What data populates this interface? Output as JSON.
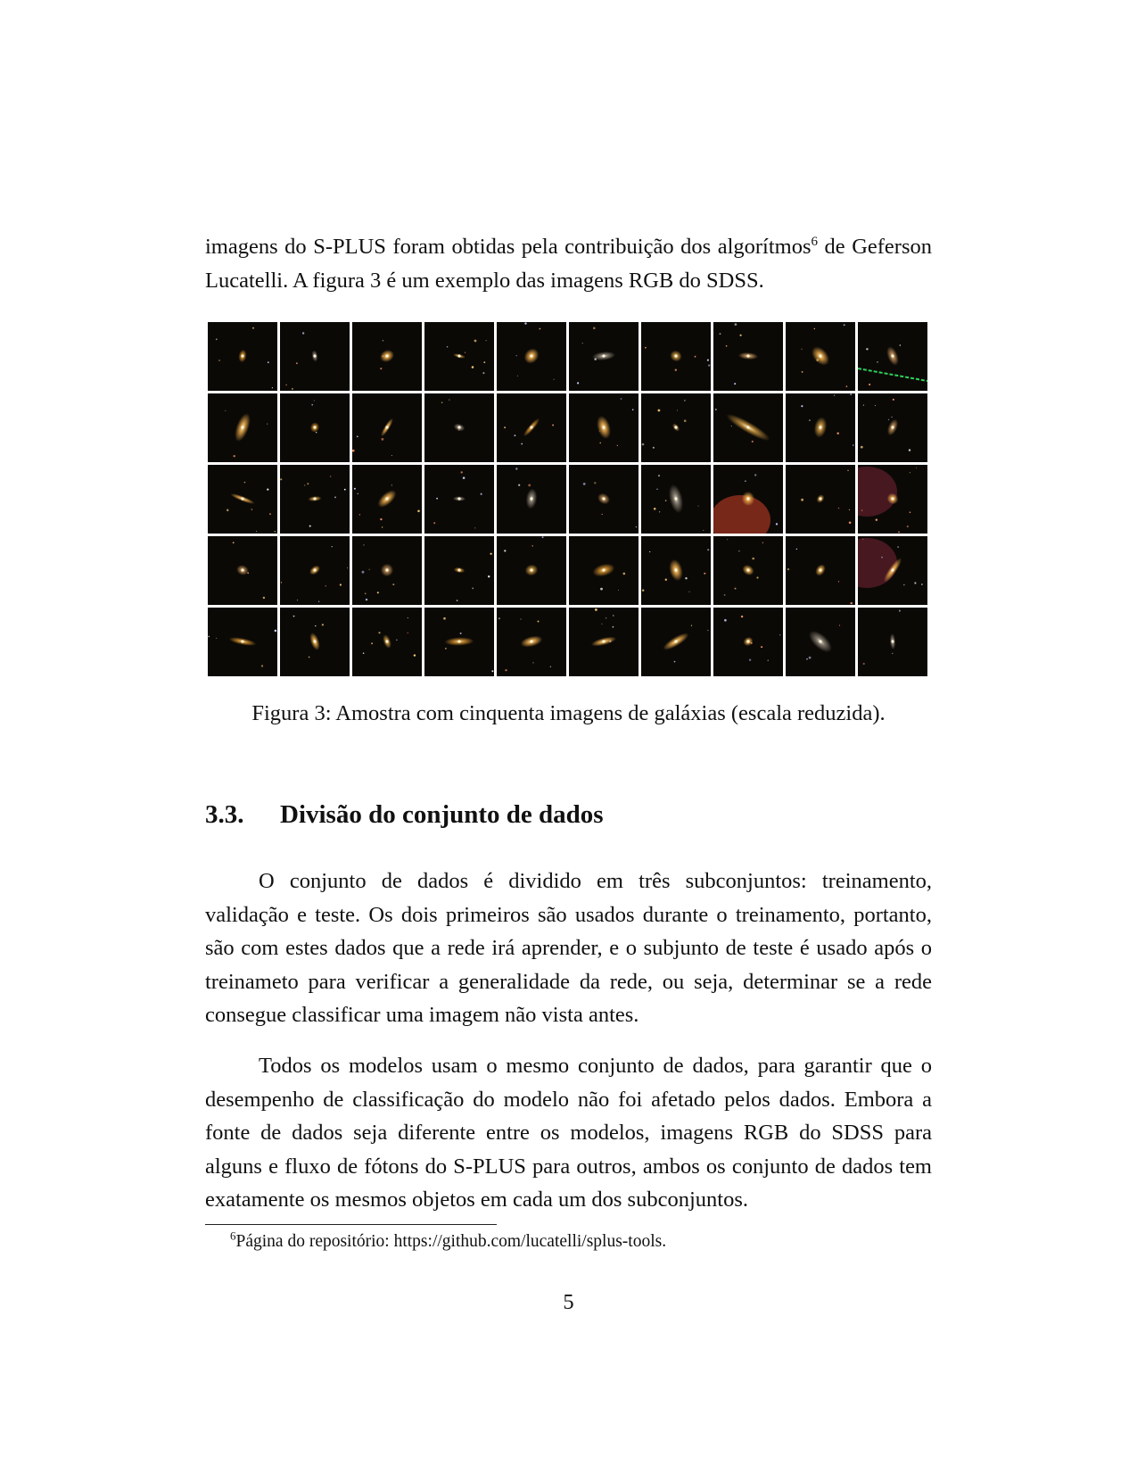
{
  "intro": {
    "before_sup": "imagens do S-PLUS foram obtidas pela contribuição dos algorítmos",
    "sup": "6",
    "after_sup": " de Geferson Lucatelli. A figura 3 é um exemplo das imagens RGB do SDSS."
  },
  "figure": {
    "rows": 5,
    "cols": 10,
    "caption": "Figura 3: Amostra com cinquenta imagens de galáxias (escala reduzida)."
  },
  "section": {
    "number": "3.3.",
    "title": "Divisão do conjunto de dados"
  },
  "paragraphs": [
    "O conjunto de dados é dividido em três subconjuntos: treinamento, validação e teste. Os dois primeiros são usados durante o treinamento, portanto, são com estes dados que a rede irá aprender, e o subjunto de teste é usado após o treinameto para verificar a generalidade da rede, ou seja, determinar se a rede consegue classificar uma imagem não vista antes.",
    "Todos os modelos usam o mesmo conjunto de dados, para garantir que o desempenho de classificação do modelo não foi afetado pelos dados. Embora a fonte de dados seja diferente entre os modelos, imagens RGB do SDSS para alguns e fluxo de fótons do S-PLUS para outros, ambos os conjunto de dados tem exatamente os mesmos objetos em cada um dos subconjuntos."
  ],
  "footnote": {
    "mark": "6",
    "text": "Página do repositório: https://github.com/lucatelli/splus-tools."
  },
  "page_number": "5"
}
